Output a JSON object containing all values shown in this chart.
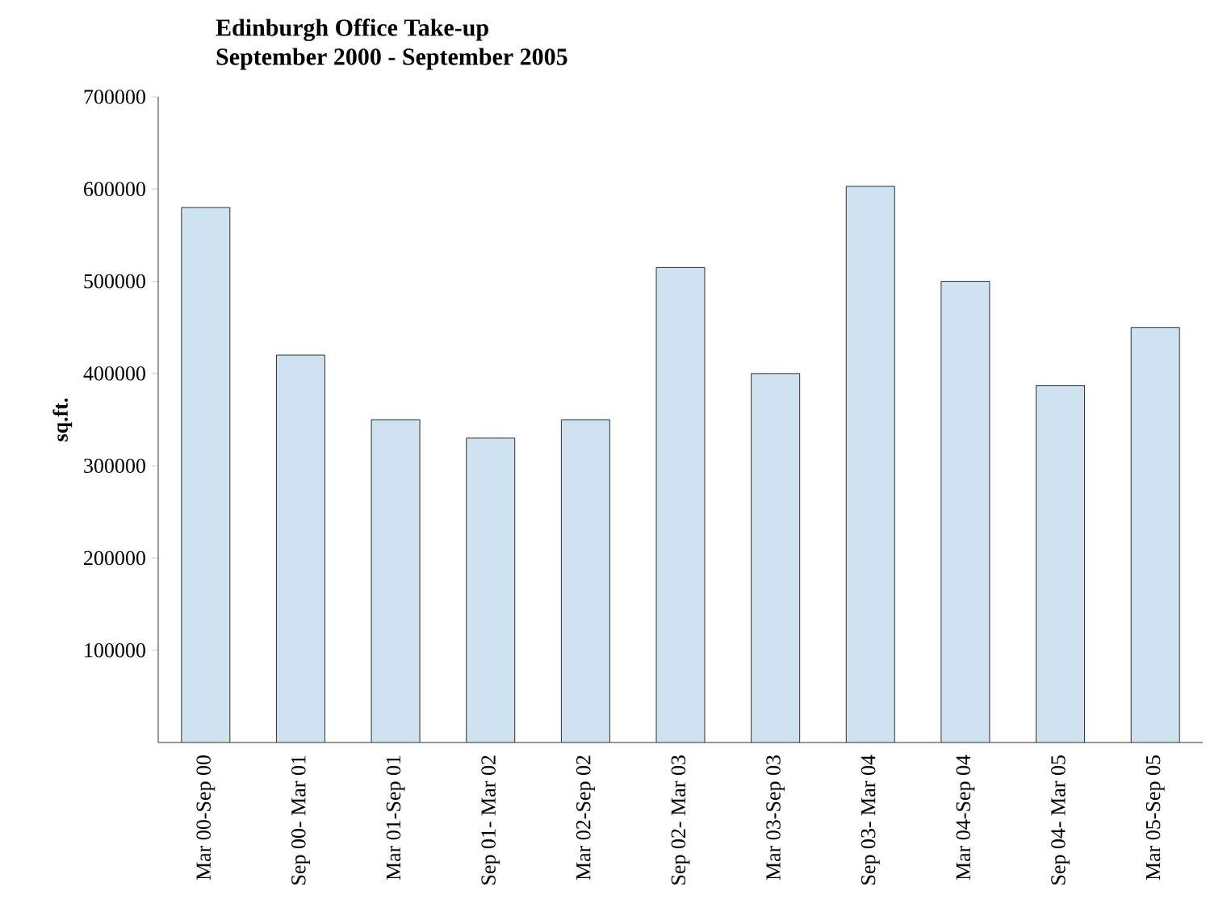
{
  "chart_data": {
    "type": "bar",
    "title": "Edinburgh Office Take-up",
    "subtitle": "September 2000 - September 2005",
    "ylabel": "sq.ft.",
    "categories": [
      "Mar 00-Sep 00",
      "Sep 00- Mar 01",
      "Mar 01-Sep 01",
      "Sep 01- Mar 02",
      "Mar 02-Sep 02",
      "Sep 02- Mar 03",
      "Mar 03-Sep 03",
      "Sep 03- Mar 04",
      "Mar 04-Sep 04",
      "Sep 04- Mar 05",
      "Mar 05-Sep 05"
    ],
    "values": [
      580000,
      420000,
      350000,
      330000,
      350000,
      515000,
      400000,
      603000,
      500000,
      387000,
      450000
    ],
    "color": "#cfe2f0",
    "ylim": [
      0,
      700000
    ],
    "yticks": [
      100000,
      200000,
      300000,
      400000,
      500000,
      600000,
      700000
    ]
  }
}
